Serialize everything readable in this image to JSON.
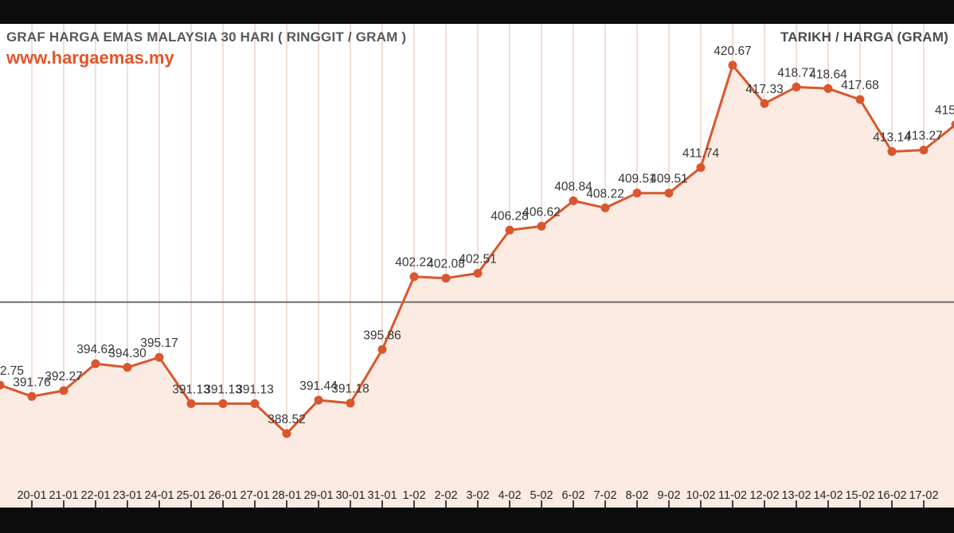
{
  "header": {
    "title": "GRAF HARGA EMAS MALAYSIA 30 HARI ( RINGGIT / GRAM )",
    "website": "www.hargaemas.my",
    "right_label": "TARIKH / HARGA (GRAM)"
  },
  "colors": {
    "line": "#d9572e",
    "marker": "#d9572e",
    "area_fill": "#fcebe3",
    "grid": "#f2ded6",
    "reference_line": "#6e6e6e",
    "value_label": "#363636",
    "axis_label": "#262626",
    "tick": "#3f3f3f",
    "title": "#57585a",
    "website": "#e2552c",
    "letterbox": "#0c0c0c",
    "plot_background": "#ffffff"
  },
  "chart_data": {
    "type": "line",
    "title": "GRAF HARGA EMAS MALAYSIA 30 HARI ( RINGGIT / GRAM )",
    "xlabel": "TARIKH",
    "ylabel": "HARGA (GRAM)",
    "unit": "RINGGIT / GRAM",
    "grid": "vertical",
    "area_fill": true,
    "marker": "circle",
    "legend_position": "none",
    "y_axis_labels_visible": false,
    "ref_line_value": 400,
    "ylim_approx": [
      386,
      423
    ],
    "points": [
      {
        "date": "",
        "label": "2.75",
        "value": 392.75,
        "edge": "left"
      },
      {
        "date": "20-01",
        "label": "391.76",
        "value": 391.76
      },
      {
        "date": "21-01",
        "label": "392.27",
        "value": 392.27
      },
      {
        "date": "22-01",
        "label": "394.62",
        "value": 394.62
      },
      {
        "date": "23-01",
        "label": "394.30",
        "value": 394.3
      },
      {
        "date": "24-01",
        "label": "395.17",
        "value": 395.17
      },
      {
        "date": "25-01",
        "label": "391.13",
        "value": 391.13
      },
      {
        "date": "26-01",
        "label": "391.13",
        "value": 391.13
      },
      {
        "date": "27-01",
        "label": "391.13",
        "value": 391.13
      },
      {
        "date": "28-01",
        "label": "388.52",
        "value": 388.52
      },
      {
        "date": "29-01",
        "label": "391.44",
        "value": 391.44
      },
      {
        "date": "30-01",
        "label": "391.18",
        "value": 391.18
      },
      {
        "date": "31-01",
        "label": "395.86",
        "value": 395.86
      },
      {
        "date": "1-02",
        "label": "402.22",
        "value": 402.22
      },
      {
        "date": "2-02",
        "label": "402.08",
        "value": 402.08
      },
      {
        "date": "3-02",
        "label": "402.51",
        "value": 402.51
      },
      {
        "date": "4-02",
        "label": "406.28",
        "value": 406.28
      },
      {
        "date": "5-02",
        "label": "406.62",
        "value": 406.62
      },
      {
        "date": "6-02",
        "label": "408.84",
        "value": 408.84
      },
      {
        "date": "7-02",
        "label": "408.22",
        "value": 408.22
      },
      {
        "date": "8-02",
        "label": "409.51",
        "value": 409.51
      },
      {
        "date": "9-02",
        "label": "409.51",
        "value": 409.51
      },
      {
        "date": "10-02",
        "label": "411.74",
        "value": 411.74
      },
      {
        "date": "11-02",
        "label": "420.67",
        "value": 420.67
      },
      {
        "date": "12-02",
        "label": "417.33",
        "value": 417.33
      },
      {
        "date": "13-02",
        "label": "418.77",
        "value": 418.77
      },
      {
        "date": "14-02",
        "label": "418.64",
        "value": 418.64
      },
      {
        "date": "15-02",
        "label": "417.68",
        "value": 417.68
      },
      {
        "date": "16-02",
        "label": "413.14",
        "value": 413.14
      },
      {
        "date": "17-02",
        "label": "413.27",
        "value": 413.27
      },
      {
        "date": "",
        "label": "415",
        "value": 415.5,
        "edge": "right"
      }
    ]
  }
}
